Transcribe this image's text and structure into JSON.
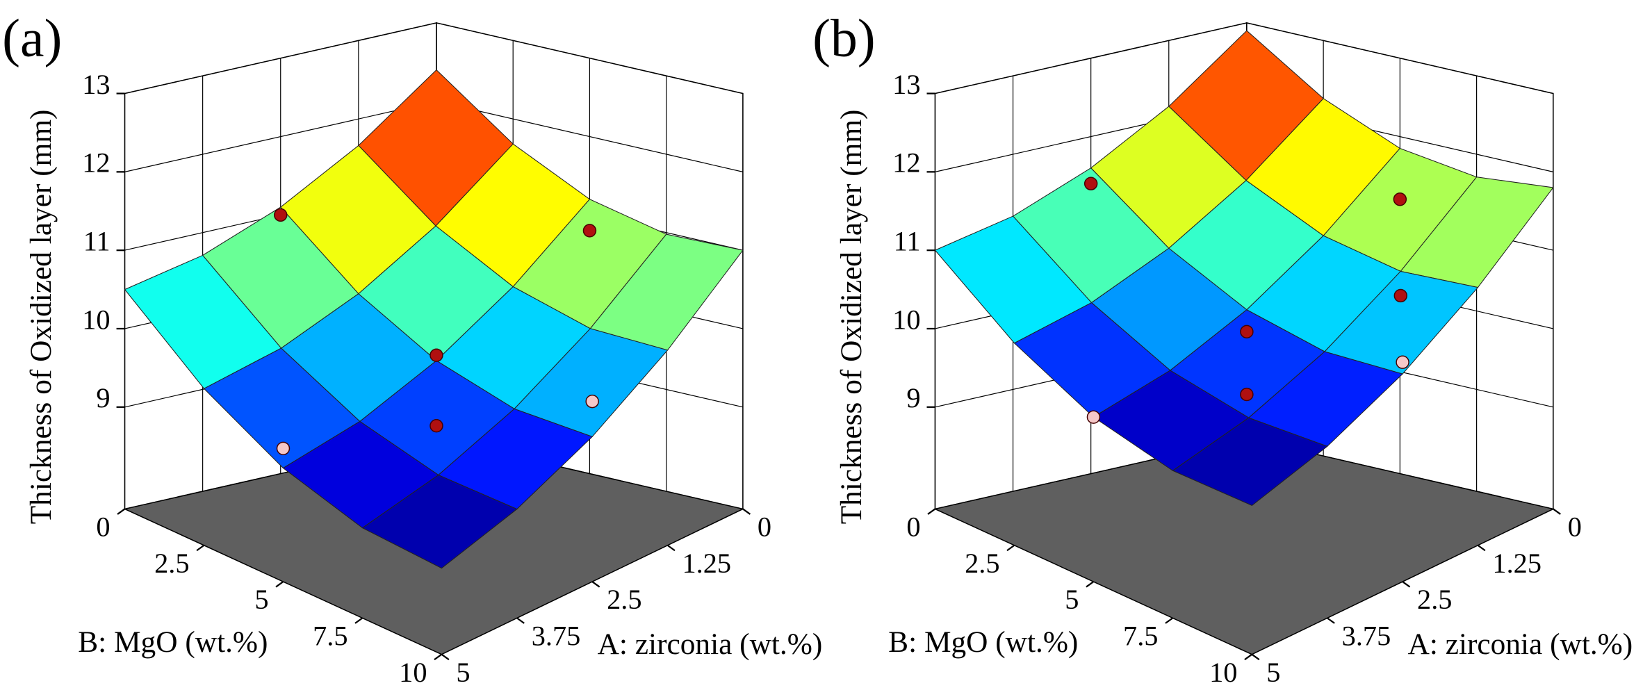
{
  "chart_data": [
    {
      "type": "surface",
      "title": "(a)",
      "zlabel": "Thickness of Oxidized layer (mm)",
      "xlabel": "A: zirconia (wt.%)",
      "ylabel": "B: MgO (wt.%)",
      "x": [
        0,
        1.25,
        2.5,
        3.75,
        5
      ],
      "y": [
        0,
        2.5,
        5,
        7.5,
        10
      ],
      "z": [
        [
          12.4,
          11.66,
          11.1,
          10.71,
          10.5
        ],
        [
          11.68,
          10.92,
          10.34,
          9.93,
          9.7
        ],
        [
          11.2,
          10.43,
          9.83,
          9.4,
          9.15
        ],
        [
          10.98,
          10.18,
          9.56,
          9.12,
          8.85
        ],
        [
          11.0,
          10.19,
          9.55,
          9.09,
          8.8
        ]
      ],
      "xlim": [
        0,
        5
      ],
      "ylim": [
        0,
        10
      ],
      "zlim": [
        7.7,
        13
      ],
      "xticks": [
        0,
        1.25,
        2.5,
        3.75,
        5
      ],
      "yticks": [
        0,
        2.5,
        5,
        7.5,
        10
      ],
      "zticks": [
        9,
        10,
        11,
        12,
        13
      ],
      "points_above": {
        "color": "#b01010",
        "x": [
          2.5,
          0,
          2.5,
          2.5
        ],
        "y": [
          0,
          5,
          5,
          5
        ],
        "z": [
          11.0,
          10.8,
          9.9,
          9.0
        ]
      },
      "points_below": {
        "color": "#f5c8c8",
        "x": [
          5,
          2.5
        ],
        "y": [
          5,
          10
        ],
        "z": [
          9.4,
          10.0
        ]
      }
    },
    {
      "type": "surface",
      "title": "(b)",
      "zlabel": "Thickness of Oxidized layer (mm)",
      "xlabel": "A: zirconia (wt.%)",
      "ylabel": "B: MgO (wt.%)",
      "x": [
        0,
        1.25,
        2.5,
        3.75,
        5
      ],
      "y": [
        0,
        2.5,
        5,
        7.5,
        10
      ],
      "z": [
        [
          12.9,
          12.16,
          11.6,
          11.21,
          11.0
        ],
        [
          12.26,
          11.5,
          10.92,
          10.51,
          10.28
        ],
        [
          11.85,
          11.08,
          10.48,
          10.05,
          9.8
        ],
        [
          11.71,
          10.91,
          10.29,
          9.85,
          9.58
        ],
        [
          11.8,
          10.99,
          10.35,
          9.89,
          9.6
        ]
      ],
      "xlim": [
        0,
        5
      ],
      "ylim": [
        0,
        10
      ],
      "zlim": [
        7.7,
        13
      ],
      "xticks": [
        0,
        1.25,
        2.5,
        3.75,
        5
      ],
      "yticks": [
        0,
        2.5,
        5,
        7.5,
        10
      ],
      "zticks": [
        9,
        10,
        11,
        12,
        13
      ],
      "points_above": {
        "color": "#b01010",
        "x": [
          2.5,
          0,
          1.25,
          2.5,
          2.5
        ],
        "y": [
          0,
          5,
          7.5,
          5,
          5
        ],
        "z": [
          11.4,
          11.2,
          10.6,
          10.2,
          9.4
        ]
      },
      "points_below": {
        "color": "#f5c8c8",
        "x": [
          5,
          2.5
        ],
        "y": [
          5,
          10
        ],
        "z": [
          9.8,
          10.5
        ]
      }
    }
  ]
}
